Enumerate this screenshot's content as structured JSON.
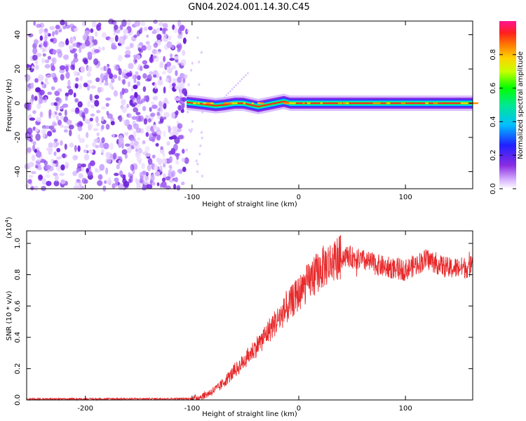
{
  "title": "GN04.2024.001.14.30.C45",
  "chart_data": [
    {
      "type": "heatmap",
      "xlabel": "Height of straight line (km)",
      "ylabel": "Frequency (Hz)",
      "xlim": [
        -255,
        163
      ],
      "ylim": [
        -50,
        48
      ],
      "xticks": [
        -200,
        -100,
        0,
        100
      ],
      "yticks": [
        -40,
        -20,
        0,
        20,
        40
      ],
      "noise_region_x": [
        -255,
        -105
      ],
      "carrier_start_x": -105,
      "carrier_frequency": 0,
      "carrier_trace": [
        {
          "x": -105,
          "y": 0.5
        },
        {
          "x": -90,
          "y": -0.5
        },
        {
          "x": -78,
          "y": -1.5
        },
        {
          "x": -70,
          "y": -1
        },
        {
          "x": -60,
          "y": 0
        },
        {
          "x": -52,
          "y": 0
        },
        {
          "x": -45,
          "y": -1
        },
        {
          "x": -38,
          "y": -2
        },
        {
          "x": -30,
          "y": -1
        },
        {
          "x": -22,
          "y": 0
        },
        {
          "x": -14,
          "y": 1
        },
        {
          "x": -8,
          "y": 0
        },
        {
          "x": 0,
          "y": 0
        },
        {
          "x": 163,
          "y": 0
        }
      ],
      "colorbar": {
        "label": "Normalized spectral amplitude",
        "ticks": [
          "0.0",
          "0.2",
          "0.4",
          "0.6",
          "0.8"
        ],
        "range": [
          0,
          1
        ]
      }
    },
    {
      "type": "line",
      "xlabel": "Height of straight line (km)",
      "ylabel": "SNR (10 * v/v)",
      "yscale_label": "(x10",
      "yscale_exp": "4",
      "yscale_close": ")",
      "xlim": [
        -255,
        163
      ],
      "ylim": [
        0,
        1.08
      ],
      "xticks": [
        -200,
        -100,
        0,
        100
      ],
      "yticks": [
        "0.0",
        "0.2",
        "0.4",
        "0.6",
        "0.8",
        "1.0"
      ],
      "color": "#e8292b",
      "envelope": [
        {
          "x": -255,
          "y": 0.005
        },
        {
          "x": -100,
          "y": 0.008
        },
        {
          "x": -92,
          "y": 0.02
        },
        {
          "x": -85,
          "y": 0.04
        },
        {
          "x": -75,
          "y": 0.08
        },
        {
          "x": -65,
          "y": 0.15
        },
        {
          "x": -55,
          "y": 0.22
        },
        {
          "x": -45,
          "y": 0.3
        },
        {
          "x": -35,
          "y": 0.38
        },
        {
          "x": -25,
          "y": 0.47
        },
        {
          "x": -15,
          "y": 0.55
        },
        {
          "x": -5,
          "y": 0.64
        },
        {
          "x": 5,
          "y": 0.72
        },
        {
          "x": 15,
          "y": 0.8
        },
        {
          "x": 25,
          "y": 0.86
        },
        {
          "x": 35,
          "y": 0.9
        },
        {
          "x": 45,
          "y": 0.92
        },
        {
          "x": 60,
          "y": 0.89
        },
        {
          "x": 80,
          "y": 0.85
        },
        {
          "x": 100,
          "y": 0.83
        },
        {
          "x": 120,
          "y": 0.9
        },
        {
          "x": 140,
          "y": 0.84
        },
        {
          "x": 163,
          "y": 0.85
        }
      ]
    }
  ]
}
